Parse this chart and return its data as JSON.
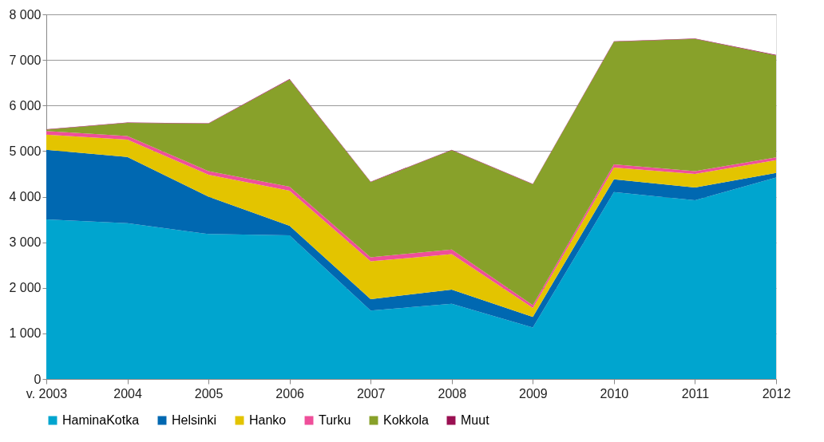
{
  "chart_data": {
    "type": "area",
    "stacked": true,
    "categories": [
      "v. 2003",
      "2004",
      "2005",
      "2006",
      "2007",
      "2008",
      "2009",
      "2010",
      "2011",
      "2012"
    ],
    "series": [
      {
        "name": "HaminaKotka",
        "color": "#00a5cf",
        "values": [
          3500,
          3420,
          3180,
          3150,
          1500,
          1650,
          1130,
          4100,
          3920,
          4420
        ]
      },
      {
        "name": "Helsinki",
        "color": "#0068b1",
        "values": [
          1530,
          1450,
          820,
          210,
          250,
          310,
          230,
          280,
          280,
          100
        ]
      },
      {
        "name": "Hanko",
        "color": "#e3c400",
        "values": [
          330,
          380,
          480,
          770,
          830,
          780,
          200,
          260,
          300,
          280
        ]
      },
      {
        "name": "Turku",
        "color": "#ef4f9a",
        "values": [
          80,
          80,
          80,
          90,
          90,
          100,
          60,
          70,
          60,
          60
        ]
      },
      {
        "name": "Kokkola",
        "color": "#88a12a",
        "values": [
          30,
          290,
          1040,
          2350,
          1650,
          2180,
          2650,
          2690,
          2900,
          2240
        ]
      },
      {
        "name": "Muut",
        "color": "#9a1052",
        "values": [
          10,
          10,
          10,
          10,
          10,
          10,
          10,
          10,
          10,
          10
        ]
      }
    ],
    "ylim": [
      0,
      8000
    ],
    "yticks": [
      0,
      {
        "value": 1000,
        "label": "1 000"
      },
      {
        "value": 2000,
        "label": "2 000"
      },
      {
        "value": 3000,
        "label": "3 000"
      },
      {
        "value": 4000,
        "label": "4 000"
      },
      {
        "value": 5000,
        "label": "5 000"
      },
      {
        "value": 6000,
        "label": "6 000"
      },
      {
        "value": 7000,
        "label": "7 000"
      },
      {
        "value": 8000,
        "label": "8 000"
      }
    ],
    "grid": "y",
    "legend": "bottom"
  }
}
